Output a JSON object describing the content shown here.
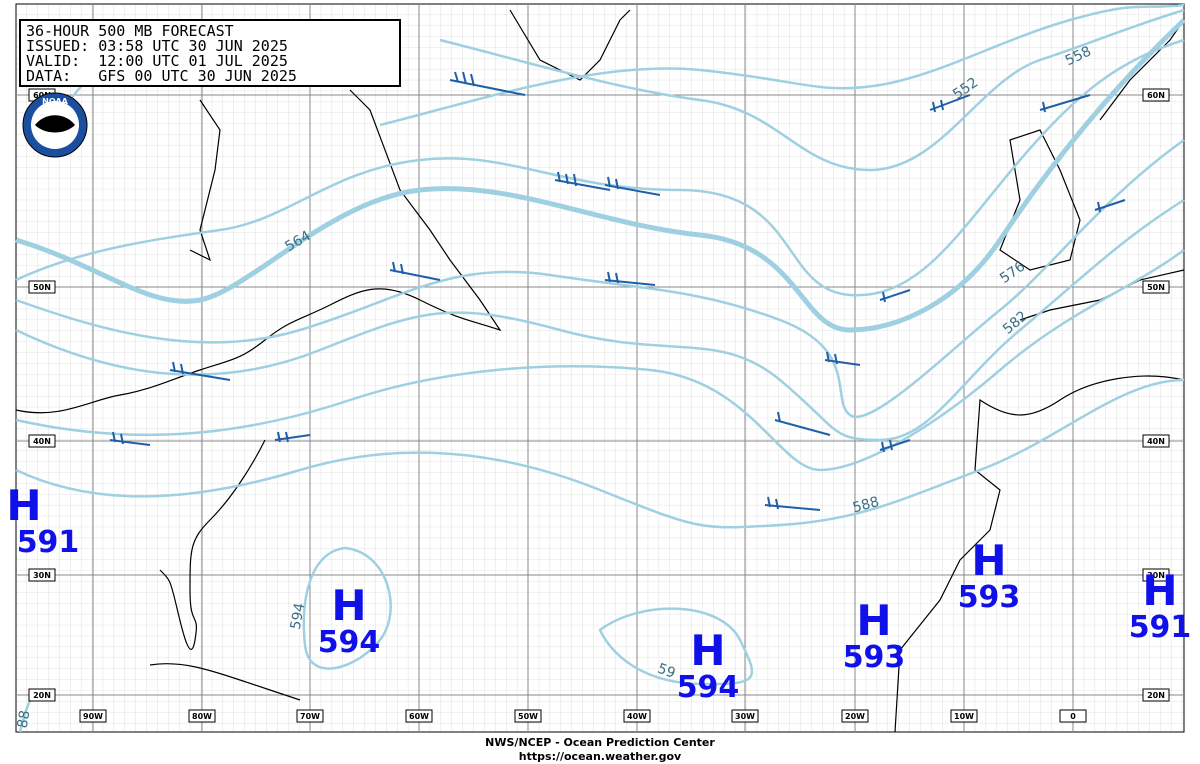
{
  "header": {
    "lines": [
      "36-HOUR 500 MB FORECAST",
      "ISSUED: 03:58 UTC 30 JUN 2025",
      "VALID:  12:00 UTC 01 JUL 2025",
      "DATA:   GFS 00 UTC 30 JUN 2025"
    ]
  },
  "logo": "NOAA",
  "longitude_labels": [
    "90W",
    "80W",
    "70W",
    "60W",
    "50W",
    "40W",
    "30W",
    "20W",
    "10W",
    "0"
  ],
  "latitude_labels": [
    "60N",
    "50N",
    "40N",
    "30N",
    "20N"
  ],
  "contour_labels": [
    "552",
    "558",
    "564",
    "576",
    "582",
    "588",
    "594",
    "59",
    "88"
  ],
  "highs": [
    {
      "symbol": "H",
      "value": "591"
    },
    {
      "symbol": "H",
      "value": "594"
    },
    {
      "symbol": "H",
      "value": "594"
    },
    {
      "symbol": "H",
      "value": "593"
    },
    {
      "symbol": "H",
      "value": "593"
    },
    {
      "symbol": "H",
      "value": "591"
    }
  ],
  "footer": {
    "lines": [
      "NWS/NCEP - Ocean Prediction Center",
      "https://ocean.weather.gov"
    ]
  }
}
